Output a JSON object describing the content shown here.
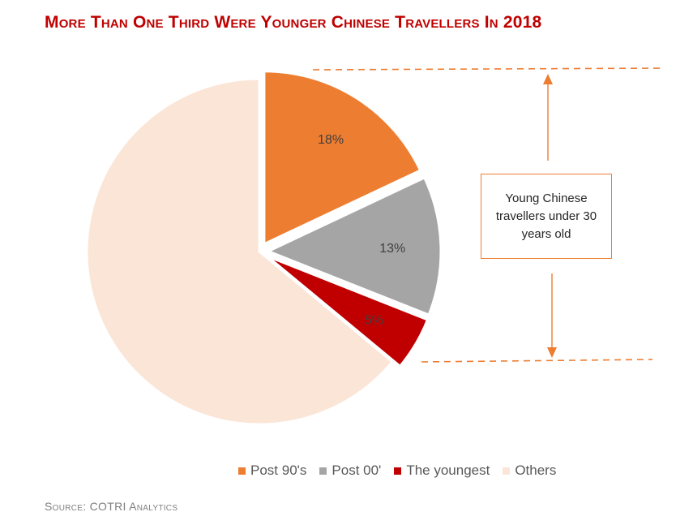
{
  "title": "More Than One Third Were Younger Chinese Travellers In 2018",
  "source": "Source: COTRI Analytics",
  "callout": "Young Chinese travellers under 30 years old",
  "chart_data": {
    "type": "pie",
    "title": "More Than One Third Were Younger Chinese Travellers In 2018",
    "labels": [
      "Post 90's",
      "Post 00'",
      "The youngest",
      "Others"
    ],
    "values": [
      18,
      13,
      5,
      64
    ],
    "data_labels": [
      "18%",
      "13%",
      "5%",
      ""
    ],
    "colors": [
      "#ed7d31",
      "#a5a5a5",
      "#c00000",
      "#fbe5d6"
    ],
    "exploded": [
      true,
      true,
      true,
      false
    ],
    "legend_position": "bottom"
  },
  "legend": [
    {
      "label": "Post 90's",
      "color": "#ed7d31"
    },
    {
      "label": "Post 00'",
      "color": "#a5a5a5"
    },
    {
      "label": "The youngest",
      "color": "#c00000"
    },
    {
      "label": "Others",
      "color": "#fbe5d6"
    }
  ]
}
